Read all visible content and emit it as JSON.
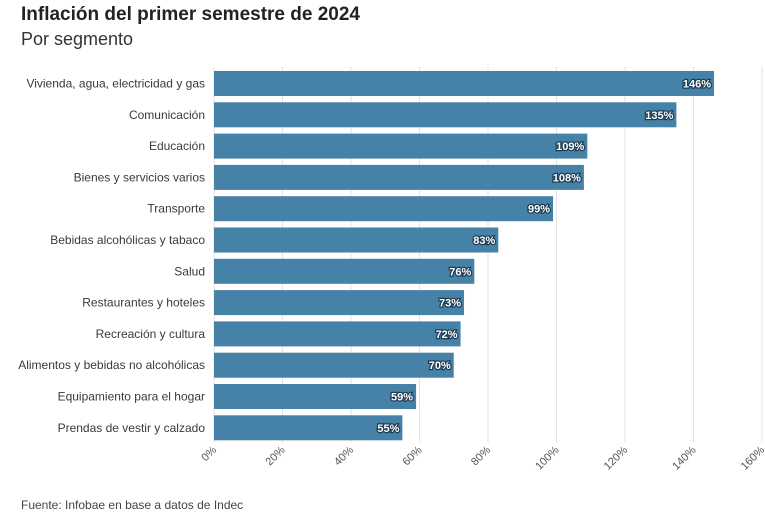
{
  "title": "Inflación del primer semestre de 2024",
  "subtitle": "Por segmento",
  "source": "Fuente: Infobae en base a datos de Indec",
  "chart_data": {
    "type": "bar",
    "orientation": "horizontal",
    "categories": [
      "Vivienda, agua, electricidad y gas",
      "Comunicación",
      "Educación",
      "Bienes y servicios varios",
      "Transporte",
      "Bebidas alcohólicas y tabaco",
      "Salud",
      "Restaurantes y hoteles",
      "Recreación y cultura",
      "Alimentos y bebidas no alcohólicas",
      "Equipamiento para el hogar",
      "Prendas de vestir y calzado"
    ],
    "values": [
      146,
      135,
      109,
      108,
      99,
      83,
      76,
      73,
      72,
      70,
      59,
      55
    ],
    "value_labels": [
      "146%",
      "135%",
      "109%",
      "108%",
      "99%",
      "83%",
      "76%",
      "73%",
      "72%",
      "70%",
      "59%",
      "55%"
    ],
    "xlim": [
      0,
      160
    ],
    "x_ticks": [
      0,
      20,
      40,
      60,
      80,
      100,
      120,
      140,
      160
    ],
    "x_tick_labels": [
      "0%",
      "20%",
      "40%",
      "60%",
      "80%",
      "100%",
      "120%",
      "140%",
      "160%"
    ],
    "bar_color": "#4682a8",
    "grid": true
  }
}
